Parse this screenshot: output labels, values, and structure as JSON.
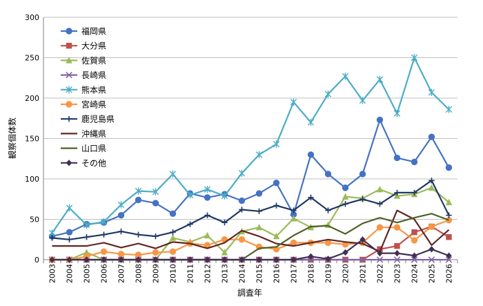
{
  "chart_data": {
    "type": "line",
    "title": "",
    "xlabel": "調査年",
    "ylabel": "観察個体数",
    "ylim": [
      0,
      300
    ],
    "yticks": [
      0,
      50,
      100,
      150,
      200,
      250,
      300
    ],
    "grid": true,
    "legend_position": "top-left inside",
    "categories": [
      "2003",
      "2004",
      "2005",
      "2006",
      "2007",
      "2008",
      "2009",
      "2010",
      "2011",
      "2012",
      "2013",
      "2014",
      "2015",
      "2016",
      "2017",
      "2018",
      "2019",
      "2020",
      "2021",
      "2022",
      "2023",
      "2024",
      "2025",
      "2026"
    ],
    "series": [
      {
        "name": "福岡県",
        "color": "#4472c4",
        "marker": "circle",
        "values": [
          29,
          34,
          44,
          46,
          55,
          74,
          70,
          57,
          82,
          77,
          81,
          73,
          82,
          95,
          56,
          130,
          106,
          89,
          106,
          173,
          126,
          121,
          152,
          114
        ]
      },
      {
        "name": "大分県",
        "color": "#c0504d",
        "marker": "square",
        "values": [
          0,
          0,
          0,
          0,
          0,
          0,
          0,
          0,
          0,
          0,
          0,
          0,
          0,
          0,
          0,
          0,
          0,
          0,
          0,
          13,
          17,
          34,
          41,
          28
        ]
      },
      {
        "name": "佐賀県",
        "color": "#9bbb59",
        "marker": "triangle",
        "values": [
          0,
          0,
          9,
          0,
          0,
          0,
          0,
          27,
          22,
          30,
          9,
          35,
          40,
          29,
          51,
          40,
          43,
          78,
          76,
          87,
          79,
          81,
          89,
          71
        ]
      },
      {
        "name": "長崎県",
        "color": "#8064a2",
        "marker": "x",
        "values": [
          0,
          0,
          0,
          0,
          0,
          0,
          0,
          0,
          0,
          0,
          0,
          0,
          0,
          0,
          0,
          0,
          0,
          0,
          0,
          0,
          0,
          0,
          0,
          0
        ]
      },
      {
        "name": "熊本県",
        "color": "#4bacc6",
        "marker": "star",
        "values": [
          33,
          64,
          43,
          47,
          68,
          85,
          84,
          106,
          80,
          87,
          79,
          107,
          130,
          143,
          195,
          170,
          205,
          227,
          197,
          223,
          181,
          250,
          207,
          186
        ]
      },
      {
        "name": "宮崎県",
        "color": "#f79646",
        "marker": "circle",
        "values": [
          0,
          0,
          4,
          10,
          7,
          6,
          9,
          10,
          20,
          18,
          25,
          25,
          16,
          13,
          21,
          21,
          21,
          19,
          21,
          40,
          40,
          24,
          41,
          49
        ]
      },
      {
        "name": "鹿児島県",
        "color": "#1f3864",
        "marker": "plus",
        "values": [
          27,
          25,
          28,
          31,
          35,
          31,
          29,
          34,
          44,
          55,
          46,
          62,
          60,
          67,
          61,
          77,
          61,
          69,
          75,
          69,
          83,
          83,
          98,
          55
        ]
      },
      {
        "name": "沖縄県",
        "color": "#632523",
        "marker": "none",
        "values": [
          17,
          17,
          17,
          21,
          15,
          20,
          14,
          22,
          20,
          14,
          21,
          36,
          29,
          20,
          17,
          21,
          25,
          22,
          20,
          10,
          61,
          50,
          18,
          37
        ]
      },
      {
        "name": "山口県",
        "color": "#4f6228",
        "marker": "none",
        "values": [
          0,
          0,
          0,
          0,
          0,
          0,
          0,
          0,
          0,
          0,
          0,
          0,
          14,
          16,
          30,
          41,
          42,
          32,
          45,
          52,
          46,
          52,
          57,
          49
        ]
      },
      {
        "name": "その他",
        "color": "#403152",
        "marker": "diamond",
        "values": [
          0,
          0,
          0,
          0,
          0,
          0,
          0,
          0,
          0,
          0,
          0,
          0,
          0,
          0,
          0,
          4,
          1,
          9,
          25,
          8,
          8,
          5,
          13,
          5
        ]
      }
    ]
  }
}
